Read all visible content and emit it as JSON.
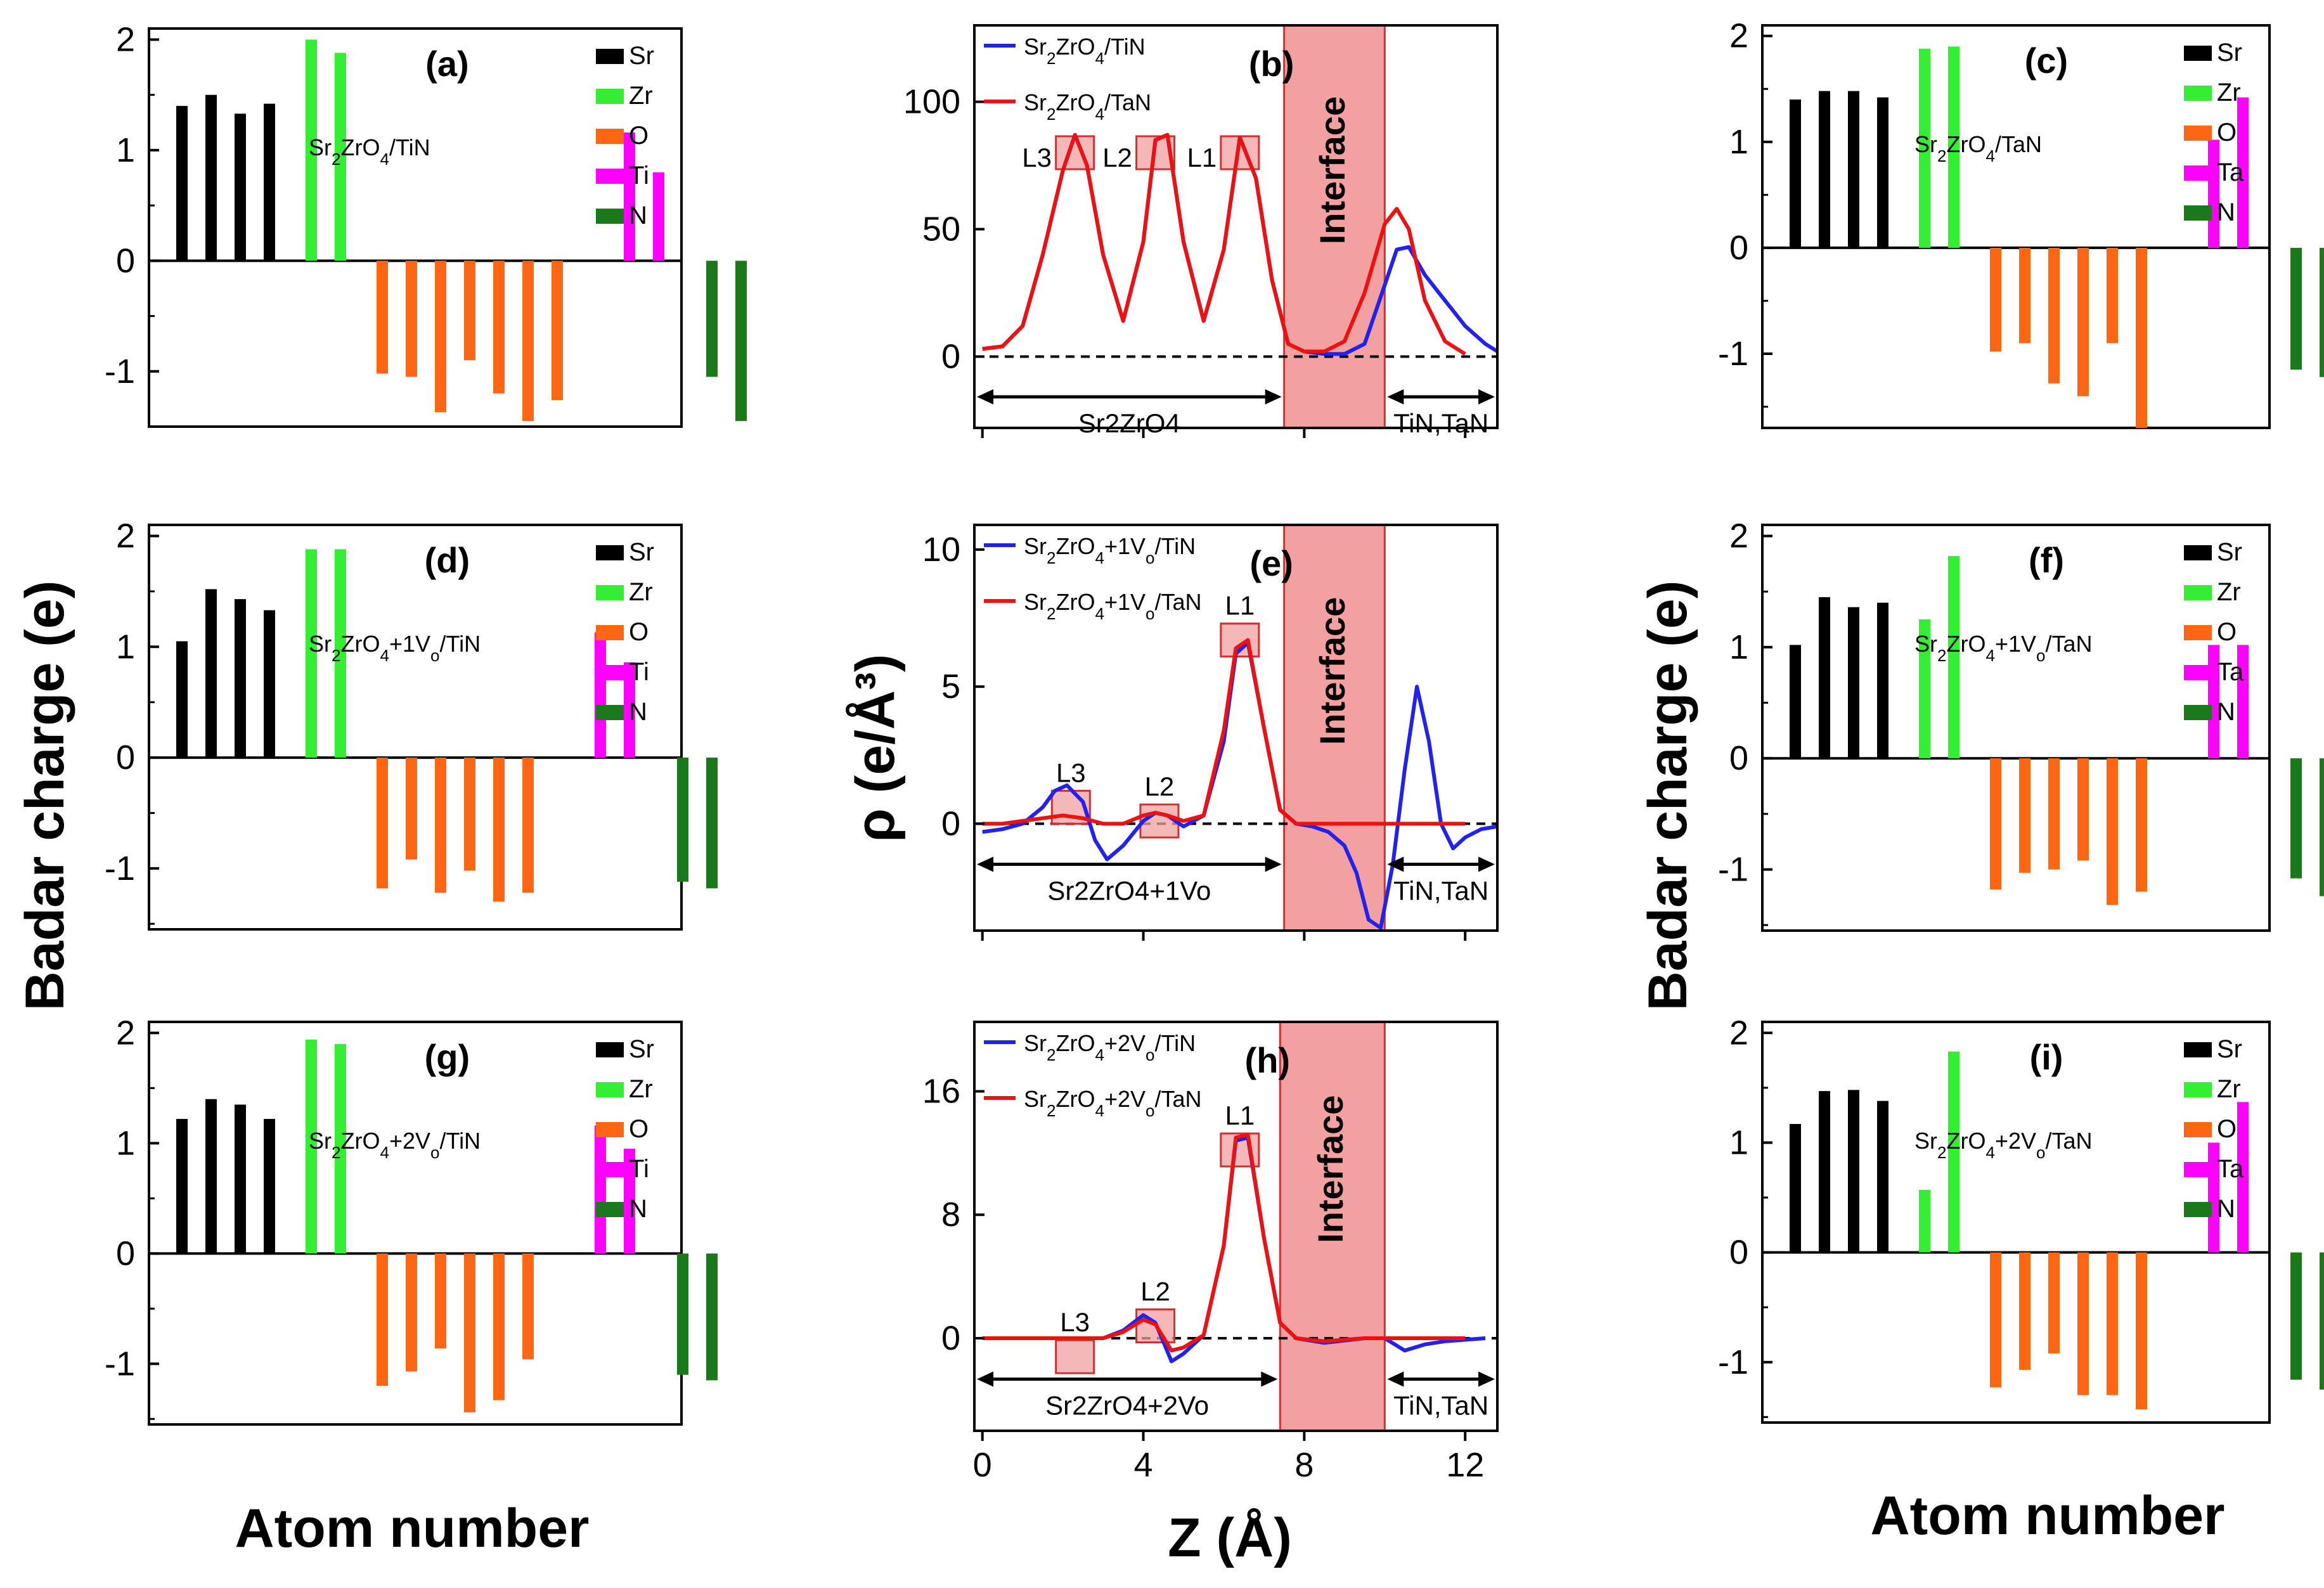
{
  "figure": {
    "left_ylabel": "Badar charge (e)",
    "right_ylabel": "Badar charge (e)",
    "center_ylabel": "ρ (e/Å³)",
    "left_xlabel": "Atom number",
    "right_xlabel": "Atom number",
    "center_xlabel": "Z (Å)"
  },
  "colors": {
    "Sr": "#000000",
    "Zr": "#33ee33",
    "O": "#ff6611",
    "Ti": "#ff00ff",
    "Ta": "#ff00ff",
    "N": "#1a7a1a",
    "tin_line": "#2222ee",
    "tan_line": "#ee1111",
    "interface_fill": "#f2a0a0",
    "box_fill": "#f0a0a0"
  },
  "chart_data": [
    {
      "id": "a",
      "type": "bar",
      "panel_label": "(a)",
      "compound": "Sr2ZrO4/TiN",
      "yticks": [
        "2",
        "1",
        "0",
        "-1"
      ],
      "ylim": [
        -1.5,
        2.1
      ],
      "legend": [
        "Sr",
        "Zr",
        "O",
        "Ti",
        "N"
      ],
      "groups": [
        {
          "element": "Sr",
          "values": [
            1.4,
            1.5,
            1.33,
            1.42
          ]
        },
        {
          "element": "Zr",
          "values": [
            2.0,
            1.88
          ]
        },
        {
          "element": "O",
          "values": [
            -1.02,
            -1.05,
            -1.37,
            -0.9,
            -1.2,
            -1.45,
            -1.26
          ]
        },
        {
          "element": "Ti",
          "values": [
            1.16,
            0.8
          ]
        },
        {
          "element": "N",
          "values": [
            -1.05,
            -1.45
          ]
        }
      ]
    },
    {
      "id": "c",
      "type": "bar",
      "panel_label": "(c)",
      "compound": "Sr2ZrO4/TaN",
      "yticks": [
        "2",
        "1",
        "0",
        "-1"
      ],
      "ylim": [
        -1.7,
        2.1
      ],
      "legend": [
        "Sr",
        "Zr",
        "O",
        "Ta",
        "N"
      ],
      "groups": [
        {
          "element": "Sr",
          "values": [
            1.4,
            1.48,
            1.48,
            1.42
          ]
        },
        {
          "element": "Zr",
          "values": [
            1.88,
            1.9
          ]
        },
        {
          "element": "O",
          "values": [
            -0.98,
            -0.9,
            -1.28,
            -1.4,
            -0.9,
            -1.7
          ]
        },
        {
          "element": "Ta",
          "values": [
            1.02,
            1.42
          ]
        },
        {
          "element": "N",
          "values": [
            -1.15,
            -1.22
          ]
        }
      ]
    },
    {
      "id": "d",
      "type": "bar",
      "panel_label": "(d)",
      "compound": "Sr2ZrO4+1Vo/TiN",
      "yticks": [
        "2",
        "1",
        "0",
        "-1"
      ],
      "ylim": [
        -1.55,
        2.1
      ],
      "legend": [
        "Sr",
        "Zr",
        "O",
        "Ti",
        "N"
      ],
      "groups": [
        {
          "element": "Sr",
          "values": [
            1.05,
            1.52,
            1.43,
            1.33
          ]
        },
        {
          "element": "Zr",
          "values": [
            1.88,
            1.88
          ]
        },
        {
          "element": "O",
          "values": [
            -1.18,
            -0.92,
            -1.22,
            -1.02,
            -1.3,
            -1.22
          ]
        },
        {
          "element": "Ti",
          "values": [
            1.13,
            0.86
          ]
        },
        {
          "element": "N",
          "values": [
            -1.12,
            -1.18
          ]
        }
      ]
    },
    {
      "id": "f",
      "type": "bar",
      "panel_label": "(f)",
      "compound": "Sr2ZrO4+1Vo/TaN",
      "yticks": [
        "2",
        "1",
        "0",
        "-1"
      ],
      "ylim": [
        -1.55,
        2.1
      ],
      "legend": [
        "Sr",
        "Zr",
        "O",
        "Ta",
        "N"
      ],
      "groups": [
        {
          "element": "Sr",
          "values": [
            1.02,
            1.45,
            1.36,
            1.4
          ]
        },
        {
          "element": "Zr",
          "values": [
            1.25,
            1.82
          ]
        },
        {
          "element": "O",
          "values": [
            -1.18,
            -1.03,
            -1.0,
            -0.92,
            -1.32,
            -1.2
          ]
        },
        {
          "element": "Ta",
          "values": [
            1.02,
            1.02
          ]
        },
        {
          "element": "N",
          "values": [
            -1.08,
            -1.24
          ]
        }
      ]
    },
    {
      "id": "g",
      "type": "bar",
      "panel_label": "(g)",
      "compound": "Sr2ZrO4+2Vo/TiN",
      "yticks": [
        "2",
        "1",
        "0",
        "-1"
      ],
      "ylim": [
        -1.55,
        2.1
      ],
      "legend": [
        "Sr",
        "Zr",
        "O",
        "Ti",
        "N"
      ],
      "groups": [
        {
          "element": "Sr",
          "values": [
            1.22,
            1.4,
            1.35,
            1.22
          ]
        },
        {
          "element": "Zr",
          "values": [
            1.94,
            1.9
          ]
        },
        {
          "element": "O",
          "values": [
            -1.2,
            -1.07,
            -0.86,
            -1.44,
            -1.33,
            -0.96
          ]
        },
        {
          "element": "Ti",
          "values": [
            1.16,
            0.95
          ]
        },
        {
          "element": "N",
          "values": [
            -1.1,
            -1.15
          ]
        }
      ]
    },
    {
      "id": "i",
      "type": "bar",
      "panel_label": "(i)",
      "compound": "Sr2ZrO4+2Vo/TaN",
      "yticks": [
        "2",
        "1",
        "0",
        "-1"
      ],
      "ylim": [
        -1.55,
        2.1
      ],
      "legend": [
        "Sr",
        "Zr",
        "O",
        "Ta",
        "N"
      ],
      "groups": [
        {
          "element": "Sr",
          "values": [
            1.17,
            1.47,
            1.48,
            1.38
          ]
        },
        {
          "element": "Zr",
          "values": [
            0.57,
            1.83
          ]
        },
        {
          "element": "O",
          "values": [
            -1.23,
            -1.07,
            -0.92,
            -1.3,
            -1.3,
            -1.43
          ]
        },
        {
          "element": "Ta",
          "values": [
            1.0,
            1.37
          ]
        },
        {
          "element": "N",
          "values": [
            -1.16,
            -1.25
          ]
        }
      ]
    },
    {
      "id": "b",
      "type": "line",
      "panel_label": "(b)",
      "ylim": [
        -28,
        130
      ],
      "yticks": [
        0,
        50,
        100
      ],
      "ytick_labels": [
        "0",
        "50",
        "100"
      ],
      "series": [
        {
          "name": "Sr2ZrO4/TiN",
          "color": "tin_line",
          "x": [
            0,
            0.5,
            1,
            1.5,
            2,
            2.3,
            2.6,
            3,
            3.5,
            4,
            4.3,
            4.6,
            5,
            5.5,
            6,
            6.4,
            6.8,
            7.2,
            7.6,
            8,
            8.5,
            9,
            9.5,
            10,
            10.3,
            10.6,
            11,
            11.5,
            12,
            12.5,
            12.8
          ],
          "y": [
            3,
            4,
            12,
            40,
            73,
            87,
            75,
            40,
            14,
            45,
            85,
            87,
            45,
            14,
            42,
            86,
            70,
            30,
            5,
            2,
            1,
            1,
            5,
            28,
            42,
            43,
            32,
            22,
            12,
            5,
            2
          ]
        },
        {
          "name": "Sr2ZrO4/TaN",
          "color": "tan_line",
          "x": [
            0,
            0.5,
            1,
            1.5,
            2,
            2.3,
            2.6,
            3,
            3.5,
            4,
            4.3,
            4.6,
            5,
            5.5,
            6,
            6.4,
            6.8,
            7.2,
            7.6,
            8,
            8.5,
            9,
            9.5,
            10,
            10.3,
            10.6,
            11,
            11.5,
            12
          ],
          "y": [
            3,
            4,
            12,
            40,
            73,
            87,
            75,
            40,
            14,
            45,
            85,
            87,
            45,
            14,
            42,
            86,
            70,
            30,
            5,
            2,
            2,
            6,
            25,
            52,
            58,
            50,
            22,
            6,
            1
          ]
        }
      ],
      "boxes": [
        {
          "label": "L3",
          "x": 2.3,
          "y": 80
        },
        {
          "label": "L2",
          "x": 4.3,
          "y": 80
        },
        {
          "label": "L1",
          "x": 6.4,
          "y": 80
        }
      ],
      "interface": [
        7.5,
        10.0
      ],
      "interface_label": "Interface",
      "region_left": "Sr2ZrO4",
      "region_right": "TiN,TaN"
    },
    {
      "id": "e",
      "type": "line",
      "panel_label": "(e)",
      "ylim": [
        -3.9,
        10.9
      ],
      "yticks": [
        0,
        5,
        10
      ],
      "ytick_labels": [
        "0",
        "5",
        "10"
      ],
      "series": [
        {
          "name": "Sr2ZrO4+1Vo/TiN",
          "color": "tin_line",
          "x": [
            0,
            0.5,
            1,
            1.5,
            1.8,
            2.1,
            2.5,
            2.8,
            3.1,
            3.5,
            4,
            4.3,
            4.6,
            5,
            5.5,
            6,
            6.3,
            6.6,
            7,
            7.4,
            7.8,
            8.2,
            8.6,
            9,
            9.3,
            9.6,
            9.9,
            10.2,
            10.5,
            10.8,
            11.1,
            11.4,
            11.7,
            12,
            12.4,
            12.8
          ],
          "y": [
            -0.3,
            -0.2,
            0,
            0.6,
            1.2,
            1.4,
            0.8,
            -0.6,
            -1.3,
            -0.8,
            0.1,
            0.4,
            0.3,
            -0.1,
            0.3,
            3,
            6.2,
            6.6,
            3.5,
            0.5,
            0,
            -0.1,
            -0.3,
            -0.8,
            -1.8,
            -3.5,
            -3.8,
            -1.5,
            2,
            5,
            3,
            0,
            -0.9,
            -0.5,
            -0.2,
            -0.1
          ]
        },
        {
          "name": "Sr2ZrO4+1Vo/TaN",
          "color": "tan_line",
          "x": [
            0,
            0.5,
            1,
            1.5,
            2,
            2.5,
            3,
            3.5,
            4,
            4.3,
            4.6,
            5,
            5.5,
            6,
            6.3,
            6.6,
            7,
            7.4,
            7.8,
            8.5,
            9,
            9.5,
            10,
            10.5,
            11,
            11.5,
            12
          ],
          "y": [
            0,
            0,
            0.1,
            0.2,
            0.3,
            0.2,
            0,
            0,
            0.3,
            0.4,
            0.3,
            0.1,
            0.3,
            3.4,
            6.4,
            6.7,
            3.5,
            0.5,
            0,
            0,
            0,
            0,
            0,
            0,
            0,
            0,
            0
          ]
        }
      ],
      "boxes": [
        {
          "label": "L3",
          "x": 2.2,
          "y": 0.6
        },
        {
          "label": "L2",
          "x": 4.4,
          "y": 0.1
        },
        {
          "label": "L1",
          "x": 6.4,
          "y": 6.7
        }
      ],
      "interface": [
        7.5,
        10.0
      ],
      "interface_label": "Interface",
      "region_left": "Sr2ZrO4+1Vo",
      "region_right": "TiN,TaN"
    },
    {
      "id": "h",
      "type": "line",
      "panel_label": "(h)",
      "ylim": [
        -6,
        20.5
      ],
      "yticks": [
        0,
        8,
        16
      ],
      "ytick_labels": [
        "0",
        "8",
        "16"
      ],
      "series": [
        {
          "name": "Sr2ZrO4+2Vo/TiN",
          "color": "tin_line",
          "x": [
            0,
            1,
            2,
            3,
            3.5,
            4,
            4.3,
            4.7,
            5,
            5.5,
            6,
            6.3,
            6.6,
            7,
            7.4,
            7.8,
            8.5,
            9.5,
            10,
            10.5,
            11,
            11.5,
            12,
            12.5
          ],
          "y": [
            0,
            0,
            0,
            0,
            0.5,
            1.5,
            1,
            -1.5,
            -1,
            0.2,
            6,
            12.8,
            13,
            6.5,
            1,
            0,
            -0.3,
            0,
            0,
            -0.8,
            -0.4,
            -0.2,
            -0.1,
            0
          ]
        },
        {
          "name": "Sr2ZrO4+2Vo/TaN",
          "color": "tan_line",
          "x": [
            0,
            1,
            2,
            3,
            3.5,
            4,
            4.3,
            4.7,
            5,
            5.5,
            6,
            6.3,
            6.6,
            7,
            7.4,
            7.8,
            8.5,
            9.5,
            10,
            11,
            12
          ],
          "y": [
            0,
            0,
            0,
            0,
            0.4,
            1.2,
            0.9,
            -0.8,
            -0.6,
            0.2,
            6,
            13,
            13.2,
            6.5,
            1,
            0,
            -0.2,
            0,
            0,
            0,
            0
          ]
        }
      ],
      "boxes": [
        {
          "label": "L3",
          "x": 2.3,
          "y": -1.2
        },
        {
          "label": "L2",
          "x": 4.3,
          "y": 0.8
        },
        {
          "label": "L1",
          "x": 6.4,
          "y": 12.2
        }
      ],
      "interface": [
        7.4,
        10.0
      ],
      "interface_label": "Interface",
      "region_left": "Sr2ZrO4+2Vo",
      "region_right": "TiN,TaN"
    }
  ],
  "center_xticks": [
    "0",
    "4",
    "8",
    "12"
  ],
  "center_xvals": [
    0,
    4,
    8,
    12
  ],
  "center_xlim": [
    -0.2,
    12.8
  ]
}
